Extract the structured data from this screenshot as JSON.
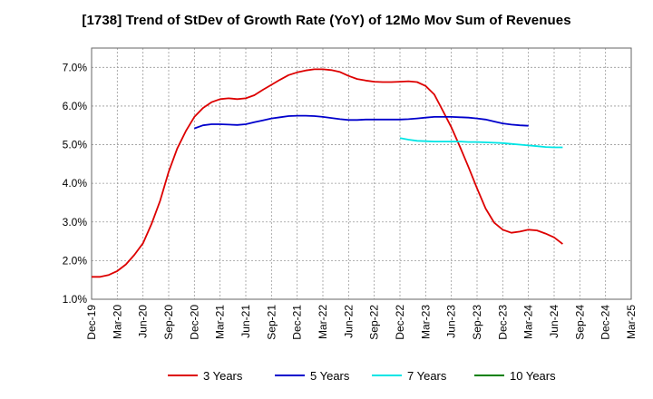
{
  "chart_data": {
    "type": "line",
    "title": "[1738]  Trend of StDev of Growth Rate (YoY) of 12Mo Mov Sum of Revenues",
    "xlabel": "",
    "ylabel": "",
    "ylim": [
      1.0,
      7.5
    ],
    "y_ticks": [
      1.0,
      2.0,
      3.0,
      4.0,
      5.0,
      6.0,
      7.0
    ],
    "y_tick_labels": [
      "1.0%",
      "2.0%",
      "3.0%",
      "4.0%",
      "5.0%",
      "6.0%",
      "7.0%"
    ],
    "x_tick_labels": [
      "Dec-19",
      "Mar-20",
      "Jun-20",
      "Sep-20",
      "Dec-20",
      "Mar-21",
      "Jun-21",
      "Sep-21",
      "Dec-21",
      "Mar-22",
      "Jun-22",
      "Sep-22",
      "Dec-22",
      "Mar-23",
      "Jun-23",
      "Sep-23",
      "Dec-23",
      "Mar-24",
      "Jun-24",
      "Sep-24",
      "Dec-24",
      "Mar-25"
    ],
    "grid": true,
    "legend_position": "bottom",
    "series": [
      {
        "name": "3 Years",
        "color": "#dd0000",
        "start_index": 0,
        "values": [
          1.58,
          1.58,
          1.63,
          1.73,
          1.9,
          2.15,
          2.45,
          2.95,
          3.55,
          4.3,
          4.9,
          5.35,
          5.72,
          5.95,
          6.1,
          6.18,
          6.2,
          6.18,
          6.2,
          6.28,
          6.42,
          6.55,
          6.68,
          6.8,
          6.87,
          6.92,
          6.95,
          6.95,
          6.93,
          6.88,
          6.78,
          6.7,
          6.66,
          6.63,
          6.62,
          6.62,
          6.63,
          6.64,
          6.62,
          6.52,
          6.3,
          5.88,
          5.45,
          4.95,
          4.42,
          3.87,
          3.35,
          2.98,
          2.8,
          2.72,
          2.75,
          2.8,
          2.78,
          2.7,
          2.6,
          2.43
        ]
      },
      {
        "name": "5 Years",
        "color": "#0000cc",
        "start_index": 12,
        "values": [
          5.42,
          5.5,
          5.53,
          5.53,
          5.52,
          5.51,
          5.53,
          5.58,
          5.63,
          5.68,
          5.71,
          5.74,
          5.75,
          5.75,
          5.74,
          5.72,
          5.69,
          5.66,
          5.64,
          5.64,
          5.65,
          5.65,
          5.65,
          5.65,
          5.65,
          5.66,
          5.68,
          5.7,
          5.72,
          5.72,
          5.72,
          5.71,
          5.7,
          5.68,
          5.65,
          5.6,
          5.55,
          5.52,
          5.5,
          5.49
        ]
      },
      {
        "name": "7 Years",
        "color": "#00e5e5",
        "start_index": 36,
        "values": [
          5.17,
          5.13,
          5.1,
          5.09,
          5.08,
          5.08,
          5.08,
          5.08,
          5.07,
          5.07,
          5.06,
          5.05,
          5.04,
          5.02,
          5.0,
          4.98,
          4.96,
          4.94,
          4.93,
          4.93
        ]
      },
      {
        "name": "10 Years",
        "color": "#008000",
        "start_index": 55,
        "values": []
      }
    ]
  }
}
